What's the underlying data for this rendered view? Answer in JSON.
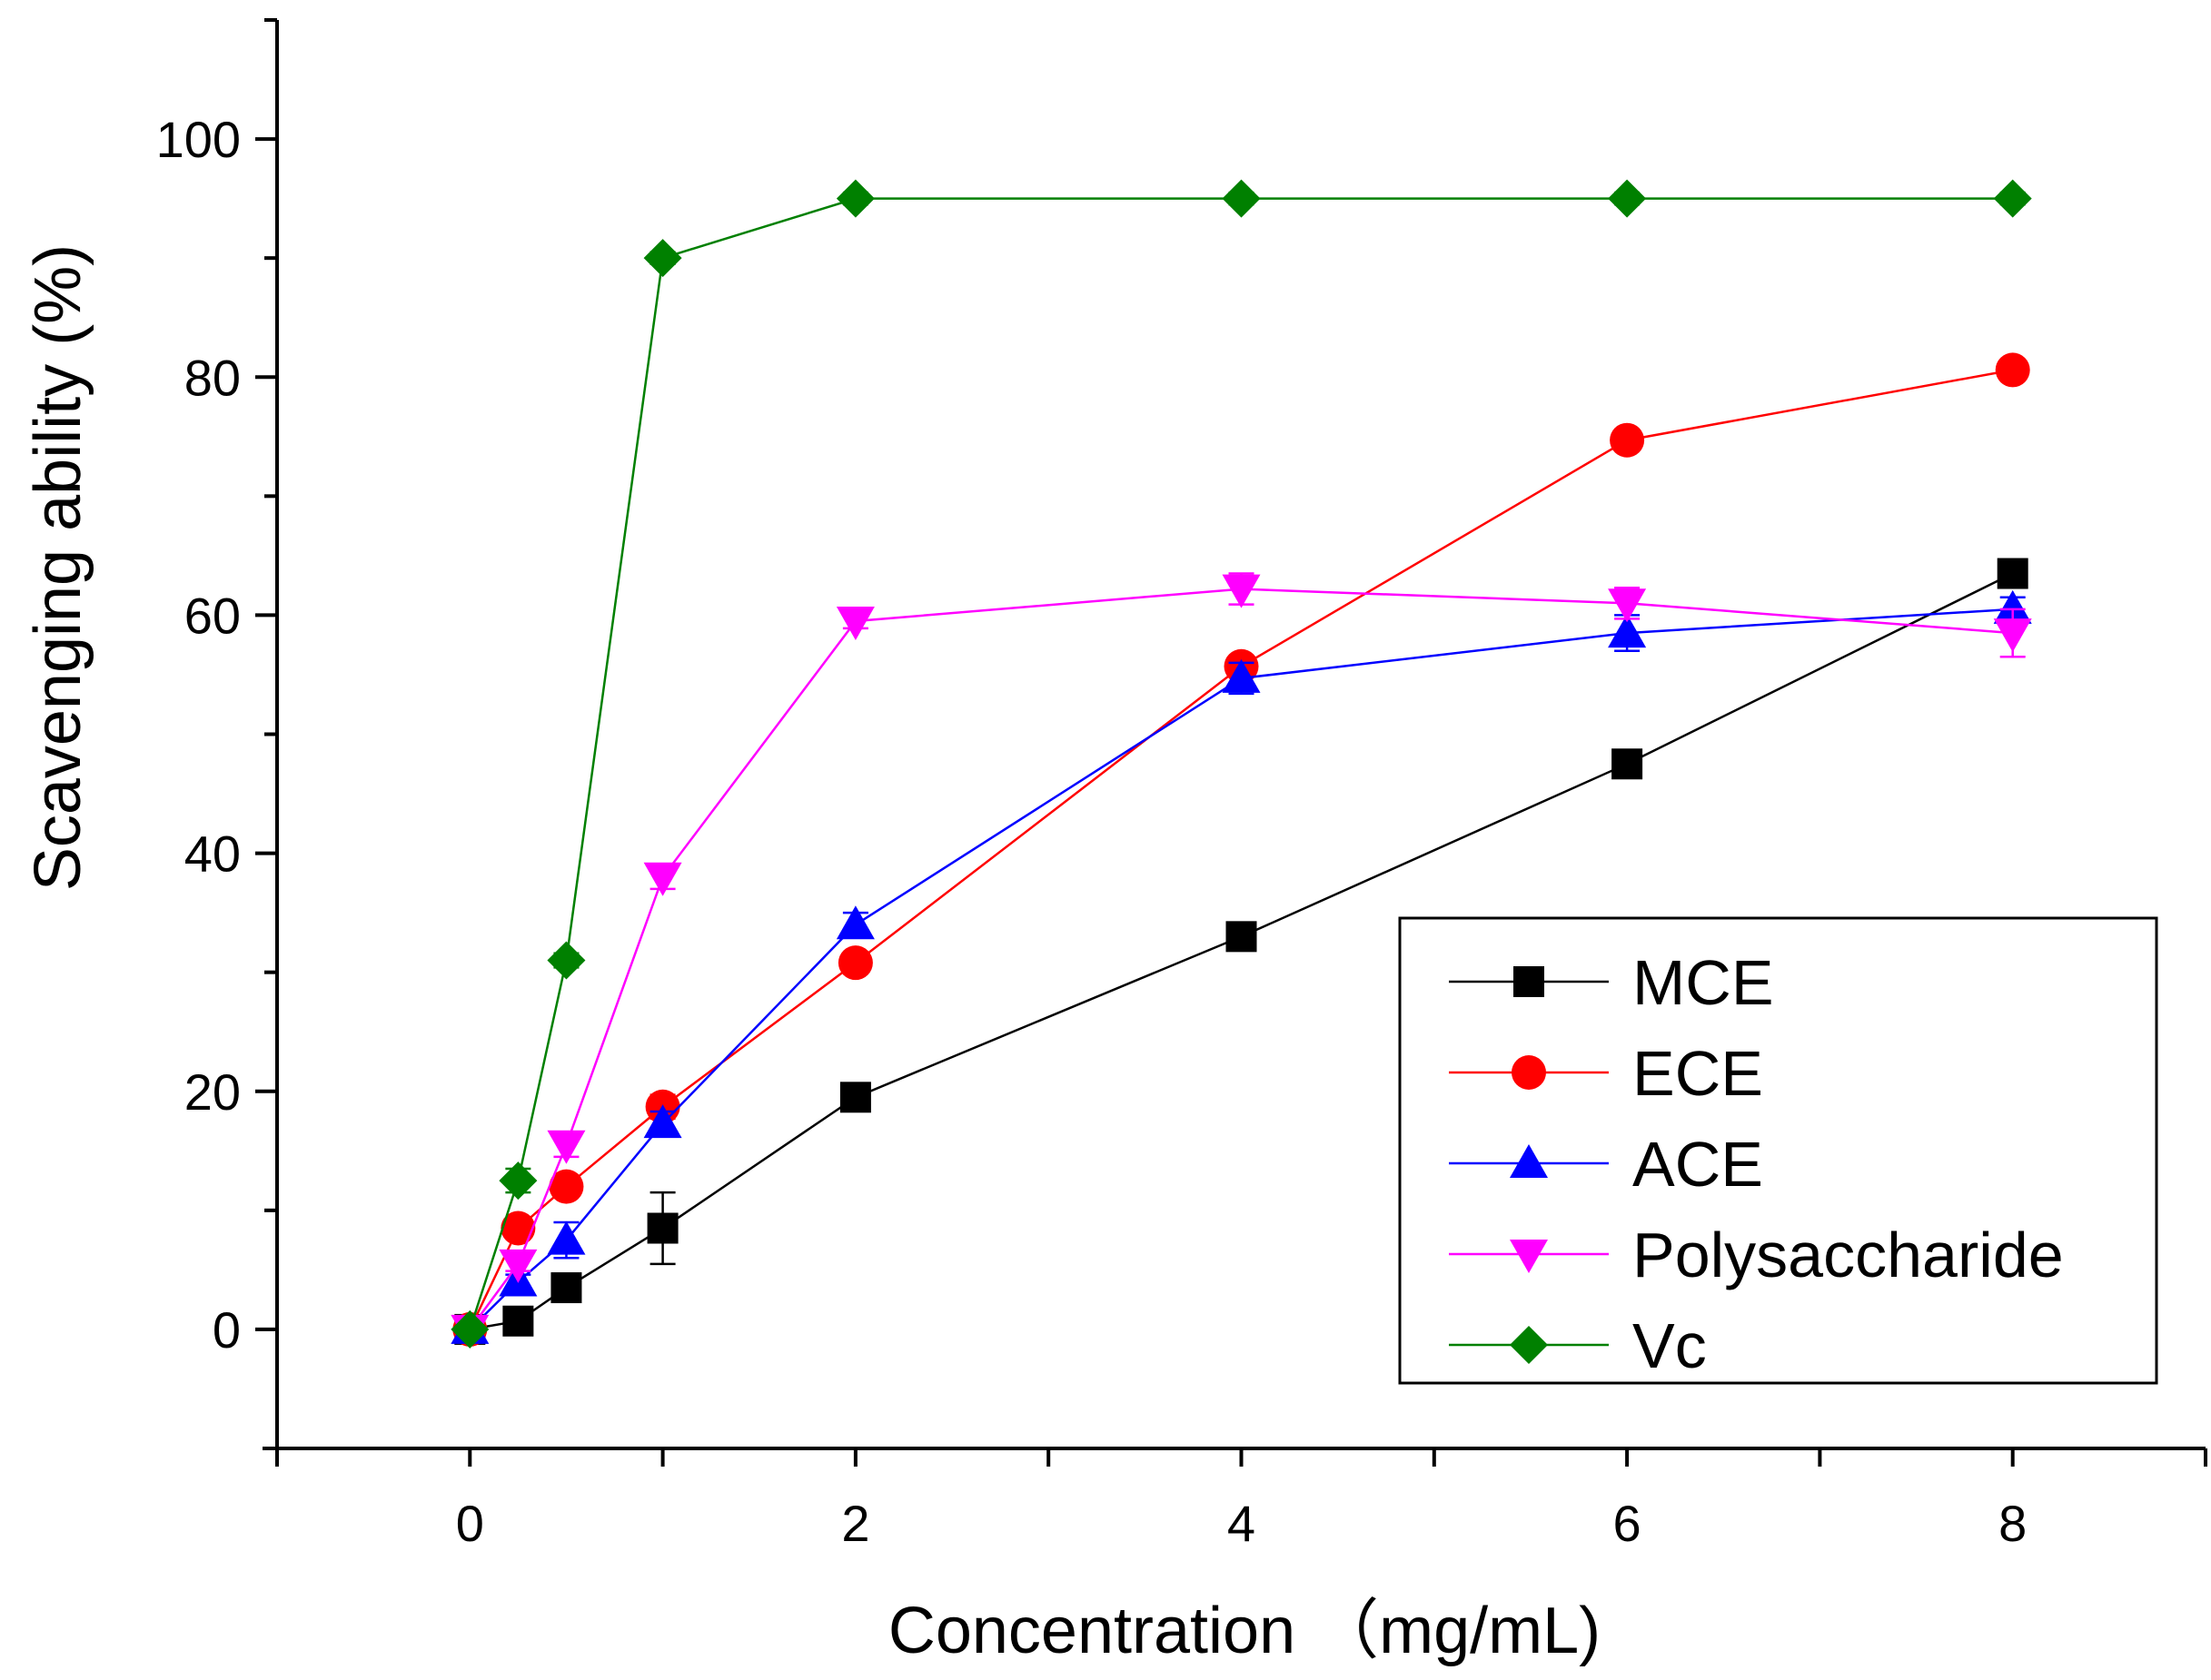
{
  "chart_data": {
    "type": "line",
    "title": "",
    "xlabel": "Concentration （mg/mL)",
    "ylabel": "Scavenging ability (%)",
    "xlim": [
      -1,
      9
    ],
    "ylim": [
      -10,
      110
    ],
    "x_ticks": [
      0,
      2,
      4,
      6,
      8
    ],
    "y_ticks": [
      0,
      20,
      40,
      60,
      80,
      100
    ],
    "grid": false,
    "legend_position": "bottom-right",
    "x": [
      0,
      0.25,
      0.5,
      1,
      2,
      4,
      6,
      8
    ],
    "series": [
      {
        "name": "MCE",
        "color": "#000000",
        "marker": "square",
        "values": [
          0,
          0.7,
          3.5,
          8.5,
          19.5,
          33,
          47.5,
          63.5
        ],
        "errors": [
          0,
          0.5,
          0.6,
          3,
          0.6,
          0.6,
          0.5,
          0.5
        ]
      },
      {
        "name": "ECE",
        "color": "#ff0000",
        "marker": "circle",
        "values": [
          0,
          8.5,
          12,
          18.7,
          30.8,
          55.7,
          74.7,
          80.6
        ],
        "errors": [
          0,
          0.6,
          0.6,
          1,
          0.6,
          0.6,
          0.5,
          0.5
        ]
      },
      {
        "name": "ACE",
        "color": "#0000ff",
        "marker": "triangle-up",
        "values": [
          0,
          4,
          7.5,
          17.3,
          34,
          54.7,
          58.5,
          60.5
        ],
        "errors": [
          0,
          0.6,
          1.5,
          1,
          1,
          1.3,
          1.5,
          1
        ]
      },
      {
        "name": "Polysaccharide",
        "color": "#ff00ff",
        "marker": "triangle-down",
        "values": [
          0,
          5.5,
          15.5,
          38,
          59.5,
          62.2,
          61,
          58.5
        ],
        "errors": [
          0,
          0.6,
          1,
          1,
          0.6,
          1.3,
          1.3,
          2
        ]
      },
      {
        "name": "Vc",
        "color": "#008000",
        "marker": "diamond",
        "values": [
          0,
          12.5,
          31,
          90,
          95,
          95,
          95,
          95
        ],
        "errors": [
          0,
          1,
          0.6,
          0.5,
          0.5,
          0.5,
          0.5,
          0.5
        ]
      }
    ]
  }
}
